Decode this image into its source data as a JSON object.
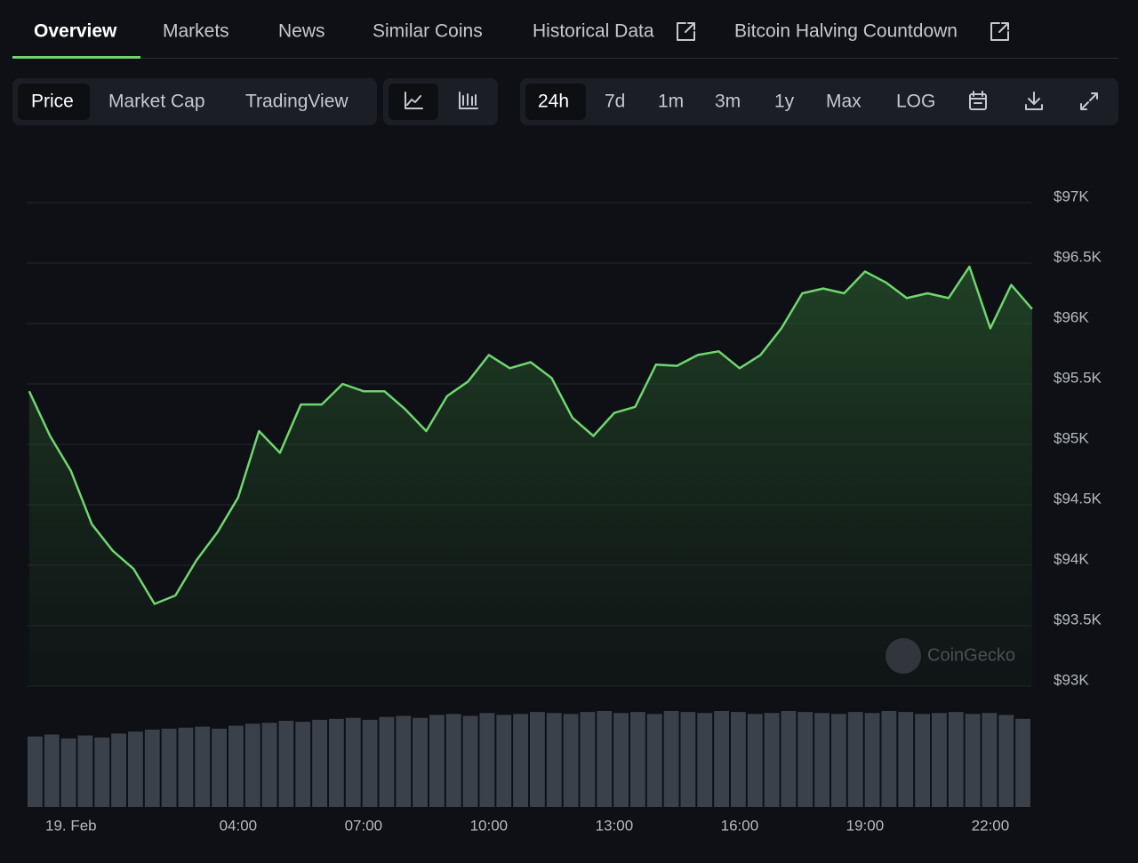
{
  "tabs": [
    "Overview",
    "Markets",
    "News",
    "Similar Coins",
    "Historical Data",
    "Bitcoin Halving Countdown"
  ],
  "controls": {
    "views": [
      "Price",
      "Market Cap",
      "TradingView"
    ],
    "ranges": [
      "24h",
      "7d",
      "1m",
      "3m",
      "1y",
      "Max",
      "LOG"
    ]
  },
  "watermark": "CoinGecko",
  "chart_data": {
    "type": "line",
    "color": "#6fd66f",
    "x": [
      -1,
      -0.5,
      0,
      0.5,
      1,
      1.5,
      2,
      2.5,
      3,
      3.5,
      4,
      4.5,
      5,
      5.5,
      6,
      6.5,
      7,
      7.5,
      8,
      8.5,
      9,
      9.5,
      10,
      10.5,
      11,
      11.5,
      12,
      12.5,
      13,
      13.5,
      14,
      14.5,
      15,
      15.5,
      16,
      16.5,
      17,
      17.5,
      18,
      18.5,
      19,
      19.5,
      20,
      20.5,
      21,
      21.5,
      22,
      22.5,
      23
    ],
    "values": [
      95440,
      95070,
      94780,
      94340,
      94120,
      93970,
      93680,
      93750,
      94040,
      94270,
      94560,
      95110,
      94930,
      95330,
      95330,
      95500,
      95440,
      95440,
      95290,
      95110,
      95400,
      95520,
      95740,
      95630,
      95680,
      95550,
      95220,
      95070,
      95260,
      95310,
      95660,
      95650,
      95740,
      95770,
      95630,
      95740,
      95960,
      96250,
      96290,
      96250,
      96430,
      96340,
      96210,
      96250,
      96210,
      96470,
      95960,
      96320,
      96120
    ],
    "xlim": [
      -1.06,
      22.98
    ],
    "xticks": [
      {
        "value": 0,
        "label": "19. Feb"
      },
      {
        "value": 4,
        "label": "04:00"
      },
      {
        "value": 7,
        "label": "07:00"
      },
      {
        "value": 10,
        "label": "10:00"
      },
      {
        "value": 13,
        "label": "13:00"
      },
      {
        "value": 16,
        "label": "16:00"
      },
      {
        "value": 19,
        "label": "19:00"
      },
      {
        "value": 22,
        "label": "22:00"
      }
    ],
    "ylim": [
      93000,
      97000
    ],
    "yticks": [
      {
        "value": 93000,
        "label": "$93K"
      },
      {
        "value": 93500,
        "label": "$93.5K"
      },
      {
        "value": 94000,
        "label": "$94K"
      },
      {
        "value": 94500,
        "label": "$94.5K"
      },
      {
        "value": 95000,
        "label": "$95K"
      },
      {
        "value": 95500,
        "label": "$95.5K"
      },
      {
        "value": 96000,
        "label": "$96K"
      },
      {
        "value": 96500,
        "label": "$96.5K"
      },
      {
        "value": 97000,
        "label": "$97K"
      }
    ],
    "grid": true,
    "volume": {
      "color": "#3a414b",
      "values": [
        72,
        74,
        70,
        73,
        71,
        75,
        77,
        79,
        80,
        81,
        82,
        80,
        83,
        85,
        86,
        88,
        87,
        89,
        90,
        91,
        89,
        92,
        93,
        91,
        94,
        95,
        93,
        96,
        94,
        95,
        97,
        96,
        95,
        97,
        98,
        96,
        97,
        95,
        98,
        97,
        96,
        98,
        97,
        95,
        96,
        98,
        97,
        96,
        95,
        97,
        96,
        98,
        97,
        95,
        96,
        97,
        95,
        96,
        94,
        90
      ]
    }
  }
}
